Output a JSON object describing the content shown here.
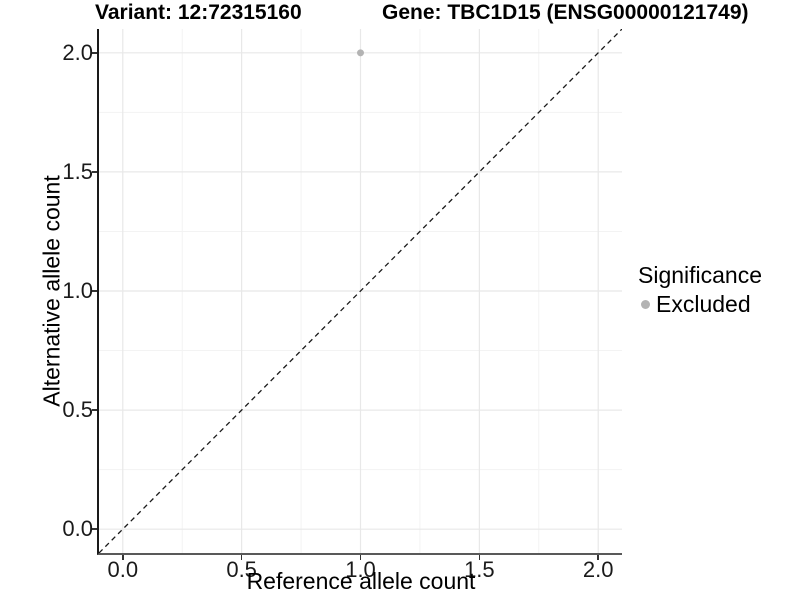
{
  "chart_data": {
    "type": "scatter",
    "title_left": "Variant: 12:72315160",
    "title_right": "Gene: TBC1D15 (ENSG00000121749)",
    "xlabel": "Reference allele count",
    "ylabel": "Alternative allele count",
    "xlim": [
      -0.1,
      2.1
    ],
    "ylim": [
      -0.1,
      2.1
    ],
    "xticks": [
      0,
      0.5,
      1,
      1.5,
      2
    ],
    "yticks": [
      0,
      0.5,
      1,
      1.5,
      2
    ],
    "xtick_labels": [
      "0.0",
      "0.5",
      "1.0",
      "1.5",
      "2.0"
    ],
    "ytick_labels": [
      "0.0",
      "0.5",
      "1.0",
      "1.5",
      "2.0"
    ],
    "minor_step": 0.25,
    "grid": "major-and-minor",
    "identity_line": {
      "style": "dashed",
      "x1": -0.1,
      "y1": -0.1,
      "x2": 2.1,
      "y2": 2.1
    },
    "points": [
      {
        "x": 1.0,
        "y": 2.0,
        "series": "Excluded"
      }
    ],
    "legend": {
      "title": "Significance",
      "position": "right",
      "items": [
        {
          "label": "Excluded",
          "color": "#b3b3b3"
        }
      ]
    },
    "colors": {
      "background": "#ffffff",
      "grid_major": "#e8e8e8",
      "grid_minor": "#f3f3f3",
      "axis_line": "#333333",
      "identity_line": "#1a1a1a",
      "point_default": "#b3b3b3",
      "text": "#000000"
    }
  }
}
